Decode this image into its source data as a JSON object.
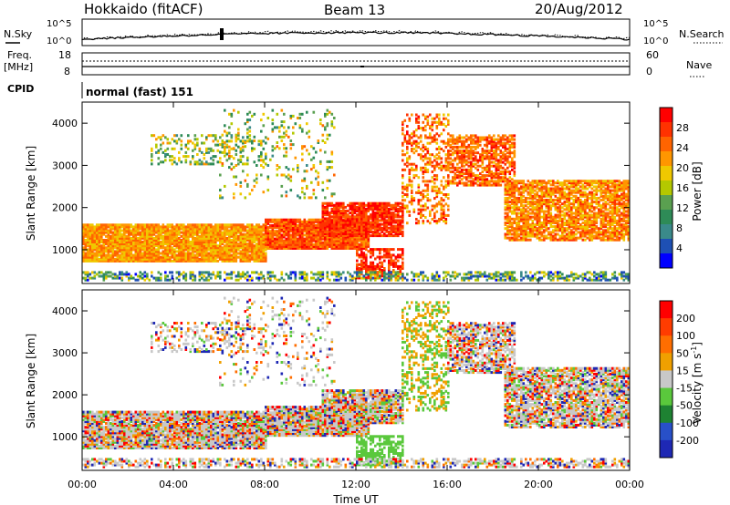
{
  "header": {
    "title": "Hokkaido (fitACF)",
    "beam": "Beam 13",
    "date": "20/Aug/2012"
  },
  "panels": {
    "nsky_label": "N.Sky",
    "nsearch_label": "N.Search",
    "noise_ticks": [
      "10^5",
      "10^0"
    ],
    "freq_label": "Freq.",
    "freq_unit": "[MHz]",
    "freq_ticks": [
      "18",
      "8"
    ],
    "nave_label": "Nave",
    "nave_ticks": [
      "60",
      "0"
    ],
    "cpid_label": "CPID",
    "cpid_value": "normal (fast) 151"
  },
  "chart_data": [
    {
      "type": "heatmap",
      "name": "power",
      "ylabel": "Slant Range [km]",
      "xlabel": "",
      "ylim": [
        200,
        4500
      ],
      "yticks": [
        1000,
        2000,
        3000,
        4000
      ],
      "colorbar_label": "Power [dB]",
      "colorbar_ticks": [
        4,
        8,
        12,
        16,
        20,
        24,
        28
      ],
      "colorbar_range": [
        0,
        32
      ],
      "colorbar_colors": [
        "#0000ff",
        "#1e50b4",
        "#3a8a8a",
        "#2e8b57",
        "#5aa050",
        "#b4c800",
        "#f0c800",
        "#ff9600",
        "#ff6400",
        "#ff3200",
        "#ff0000"
      ]
    },
    {
      "type": "heatmap",
      "name": "velocity",
      "ylabel": "Slant Range [km]",
      "xlabel": "Time UT",
      "ylim": [
        200,
        4500
      ],
      "yticks": [
        1000,
        2000,
        3000,
        4000
      ],
      "xticks": [
        "00:00",
        "04:00",
        "08:00",
        "12:00",
        "16:00",
        "20:00",
        "00:00"
      ],
      "colorbar_label": "Velocity [m s",
      "colorbar_label_sup": "-1",
      "colorbar_label_end": "]",
      "colorbar_ticks": [
        "200",
        "100",
        "50",
        "15",
        "-15",
        "-50",
        "-100",
        "-200"
      ],
      "colorbar_colors": [
        "#1e28b4",
        "#2850c8",
        "#1e8232",
        "#5ac83c",
        "#c8c8c8",
        "#f0a000",
        "#ff6e00",
        "#ff3c00",
        "#ff0000"
      ]
    }
  ]
}
